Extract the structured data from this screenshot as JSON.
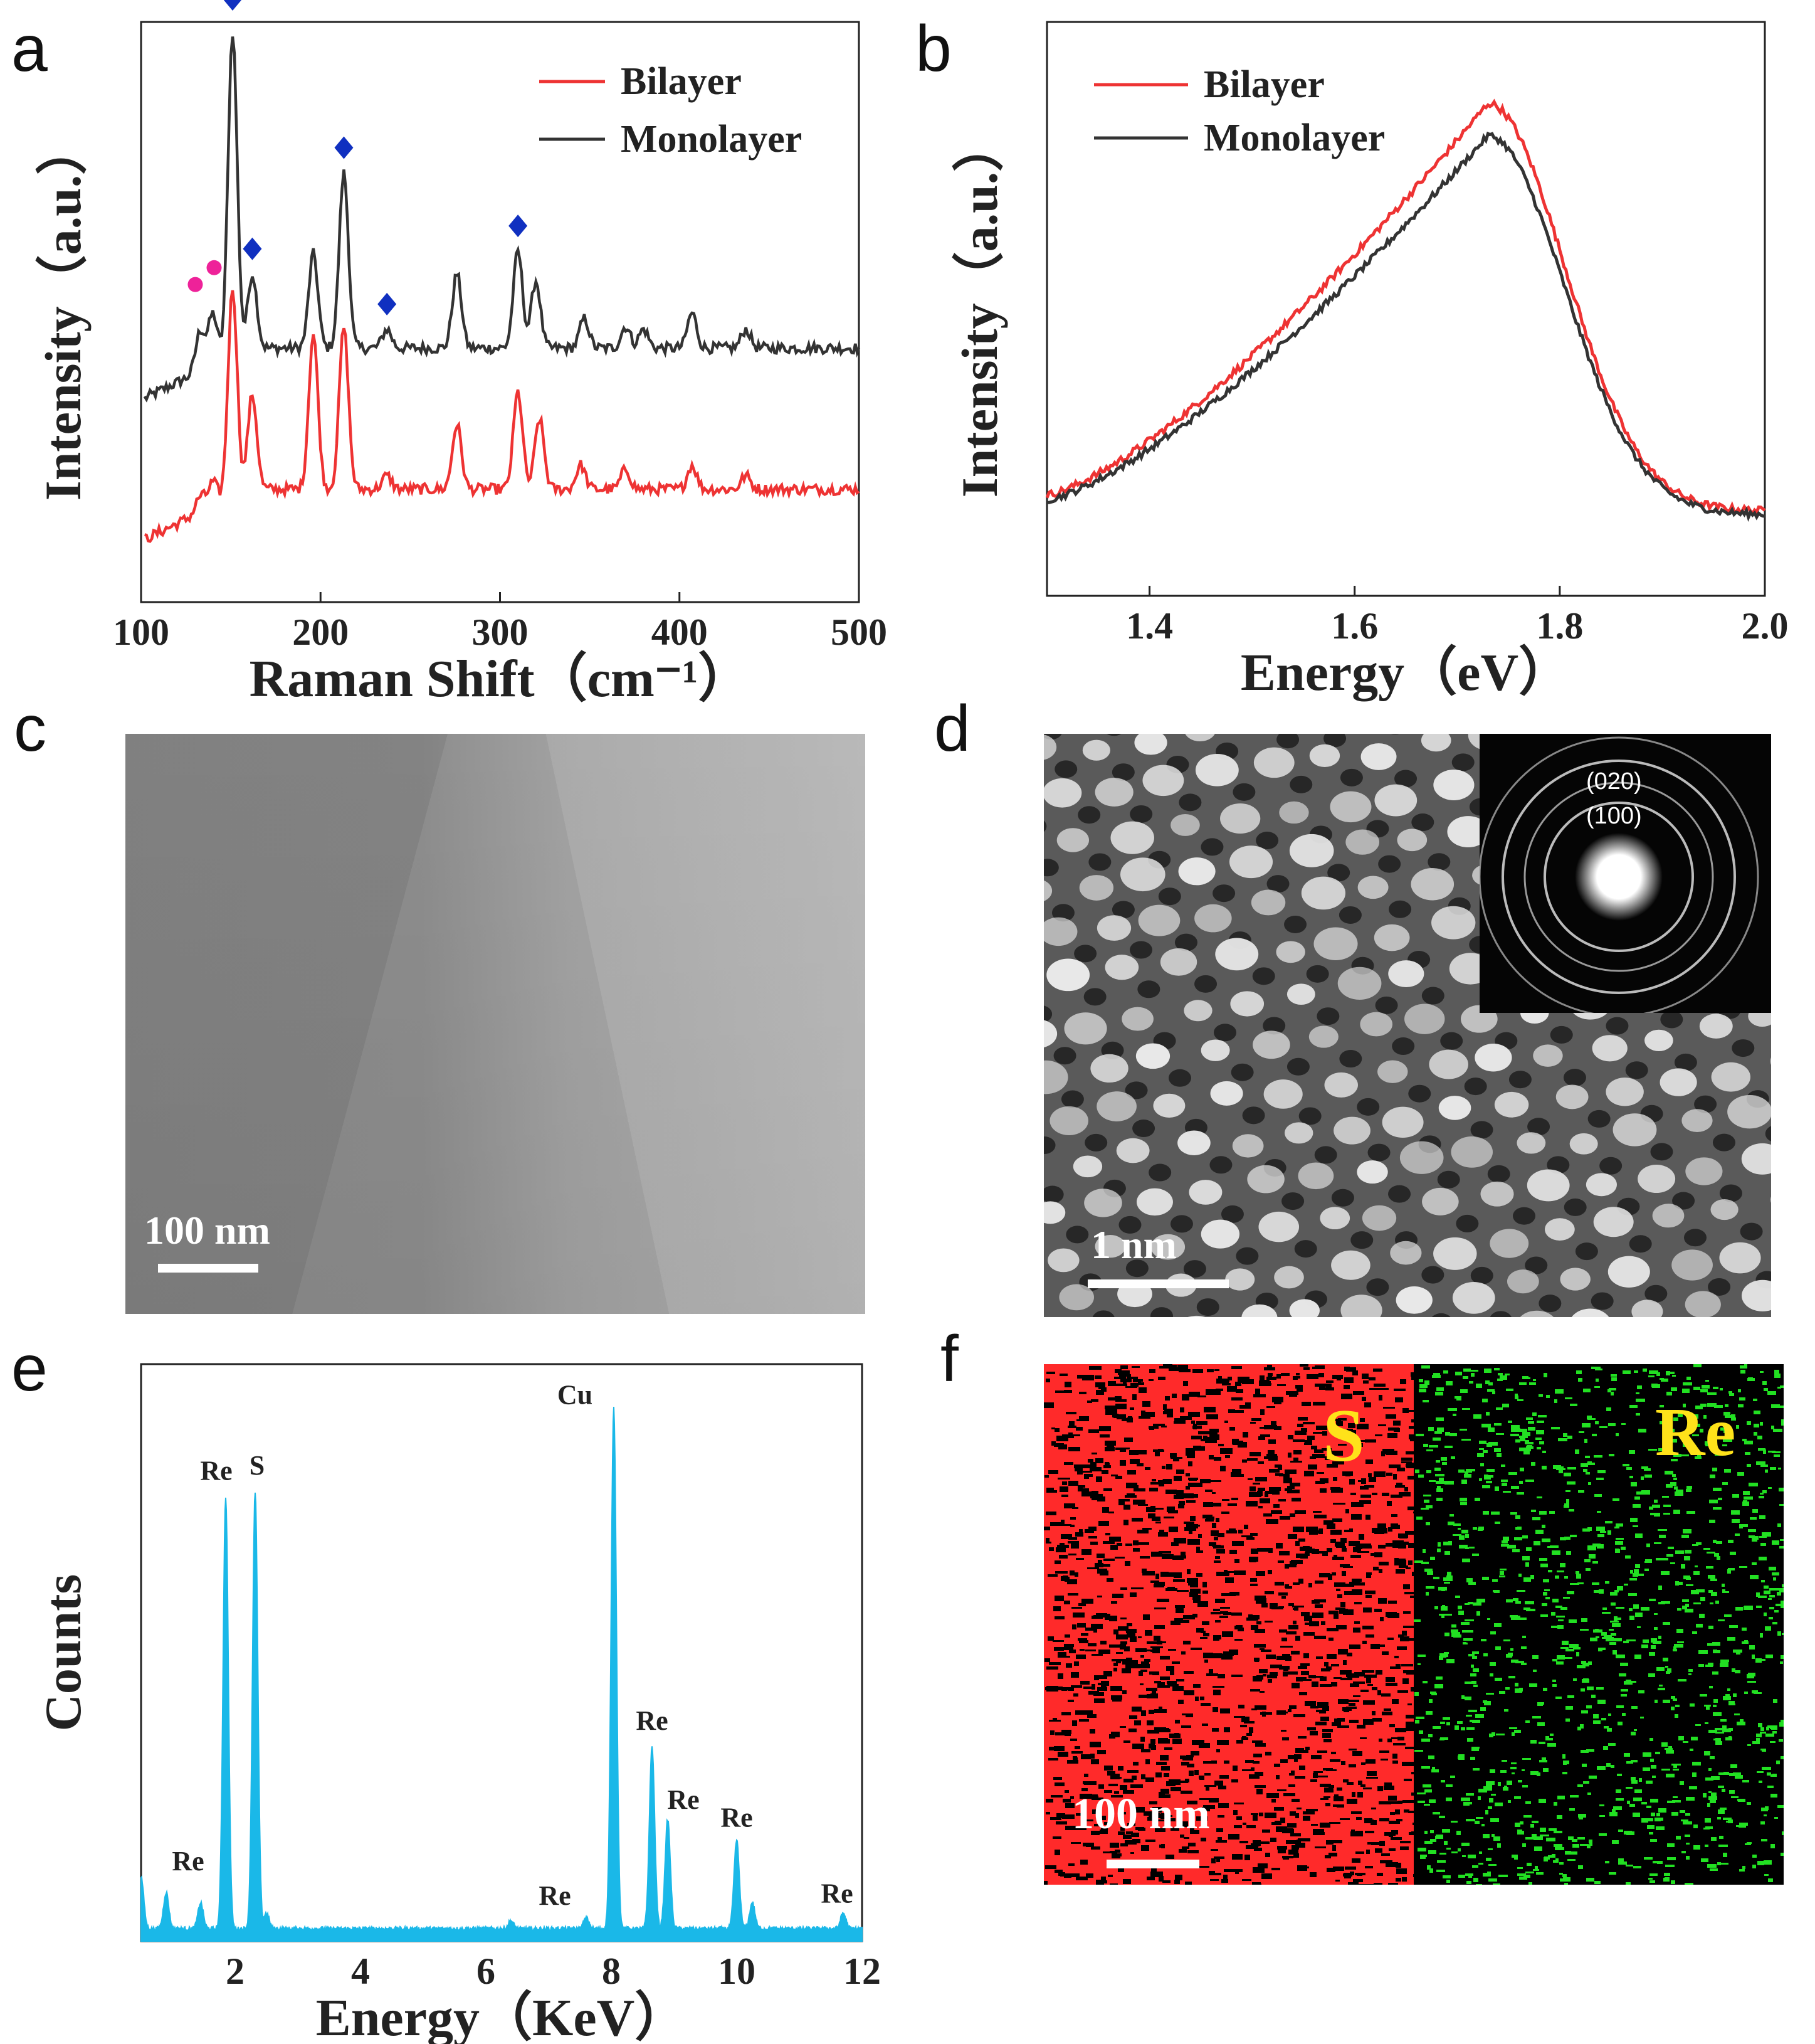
{
  "panels": {
    "a": {
      "letter": "a",
      "chart_data": {
        "type": "line",
        "title": "",
        "xlabel": "Raman Shift（cm⁻¹）",
        "ylabel": "Intensity（a.u.）",
        "xlim": [
          100,
          500
        ],
        "xticks": [
          100,
          200,
          300,
          400,
          500
        ],
        "legend": [
          "Bilayer",
          "Monolayer"
        ],
        "legend_position": "top-right",
        "series": [
          {
            "name": "Monolayer",
            "color": "#333333",
            "peaks": [
              [
                133,
                0.3
              ],
              [
                140,
                0.38
              ],
              [
                151,
                2.4
              ],
              [
                162,
                0.55
              ],
              [
                196,
                0.7
              ],
              [
                213,
                1.3
              ],
              [
                237,
                0.14
              ],
              [
                276,
                0.55
              ],
              [
                310,
                0.72
              ],
              [
                320,
                0.5
              ],
              [
                347,
                0.22
              ],
              [
                370,
                0.16
              ],
              [
                380,
                0.14
              ],
              [
                407,
                0.26
              ],
              [
                437,
                0.14
              ]
            ]
          },
          {
            "name": "Bilayer",
            "color": "#ee3333",
            "peaks": [
              [
                133,
                0.12
              ],
              [
                140,
                0.18
              ],
              [
                151,
                1.55
              ],
              [
                162,
                0.7
              ],
              [
                196,
                1.15
              ],
              [
                213,
                1.2
              ],
              [
                237,
                0.1
              ],
              [
                276,
                0.48
              ],
              [
                310,
                0.72
              ],
              [
                322,
                0.52
              ],
              [
                345,
                0.18
              ],
              [
                370,
                0.15
              ],
              [
                407,
                0.18
              ],
              [
                437,
                0.1
              ]
            ]
          }
        ],
        "markers": {
          "diamond": [
            151,
            162,
            213,
            237,
            310
          ],
          "circle": [
            133,
            140
          ]
        }
      }
    },
    "b": {
      "letter": "b",
      "chart_data": {
        "type": "line",
        "title": "",
        "xlabel": "Energy（eV）",
        "ylabel": "Intensity（a.u.）",
        "xlim": [
          1.3,
          2.0
        ],
        "xticks": [
          1.4,
          1.6,
          1.8,
          2.0
        ],
        "legend": [
          "Bilayer",
          "Monolayer"
        ],
        "legend_position": "top-left",
        "series": [
          {
            "name": "Bilayer",
            "color": "#ee3333",
            "peak_x": 1.73,
            "peak_rel": 1.0
          },
          {
            "name": "Monolayer",
            "color": "#333333",
            "peak_x": 1.73,
            "peak_rel": 0.93
          }
        ]
      }
    },
    "c": {
      "letter": "c",
      "scale_bar": "100 nm"
    },
    "d": {
      "letter": "d",
      "scale_bar": "1 nm",
      "inset_labels": [
        "(020)",
        "(100)"
      ]
    },
    "e": {
      "letter": "e",
      "chart_data": {
        "type": "area",
        "title": "",
        "xlabel": "Energy（KeV）",
        "ylabel": "Counts",
        "xlim": [
          0.5,
          12
        ],
        "xticks": [
          2,
          4,
          6,
          8,
          10,
          12
        ],
        "color": "#1ab8e8",
        "peaks": [
          [
            0.5,
            0.1
          ],
          [
            0.9,
            0.07
          ],
          [
            1.45,
            0.05
          ],
          [
            1.85,
            0.83
          ],
          [
            2.32,
            0.84
          ],
          [
            2.5,
            0.03
          ],
          [
            6.4,
            0.015
          ],
          [
            7.6,
            0.02
          ],
          [
            8.04,
            1.0
          ],
          [
            8.65,
            0.35
          ],
          [
            8.9,
            0.21
          ],
          [
            10.0,
            0.17
          ],
          [
            10.25,
            0.05
          ],
          [
            11.7,
            0.03
          ]
        ],
        "annotations": [
          {
            "text": "Re",
            "x": 1.45
          },
          {
            "text": "Re",
            "x": 1.85
          },
          {
            "text": "S",
            "x": 2.32
          },
          {
            "text": "Re",
            "x": 7.6
          },
          {
            "text": "Cu",
            "x": 8.04
          },
          {
            "text": "Re",
            "x": 8.65
          },
          {
            "text": "Re",
            "x": 8.9
          },
          {
            "text": "Re",
            "x": 10.0
          },
          {
            "text": "Re",
            "x": 11.7
          }
        ]
      }
    },
    "f": {
      "letter": "f",
      "scale_bar": "100 nm",
      "map_labels": [
        "S",
        "Re"
      ],
      "map_colors": [
        "#ff1f1f",
        "#1fdd1f"
      ]
    }
  }
}
